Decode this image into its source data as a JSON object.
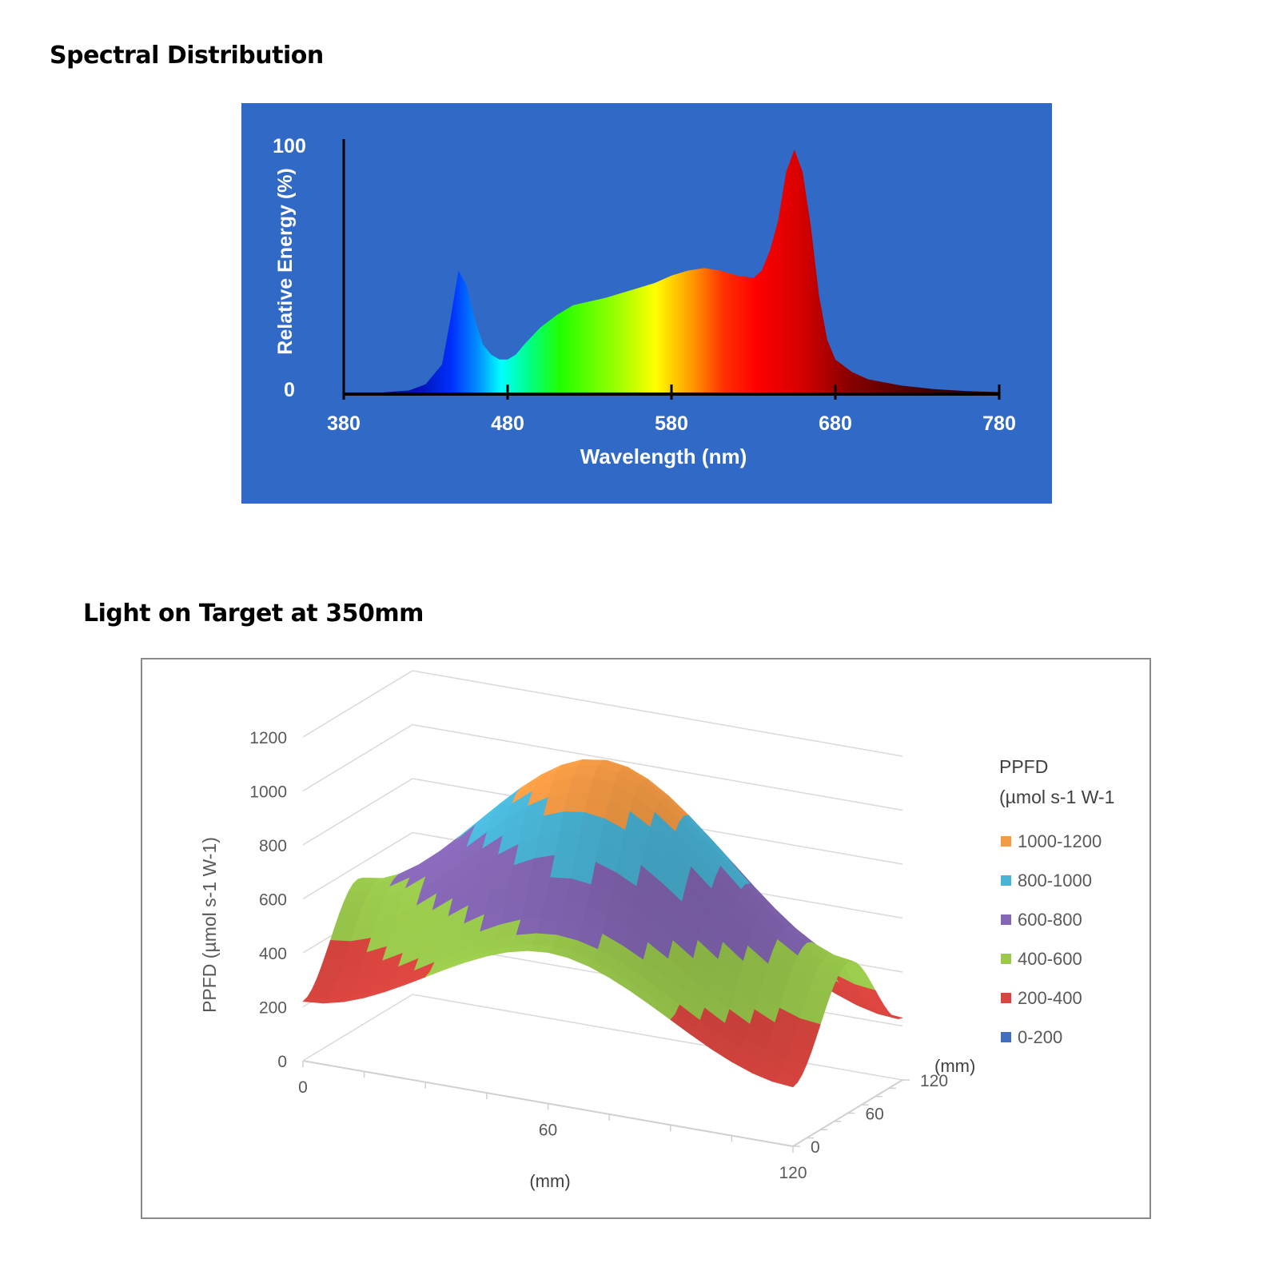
{
  "titles": {
    "spectral": "Spectral Distribution",
    "target": "Light on Target at 350mm"
  },
  "chart_data": [
    {
      "type": "area",
      "xlabel": "Wavelength (nm)",
      "ylabel": "Relative Energy (%)",
      "xlim": [
        380,
        780
      ],
      "ylim": [
        0,
        100
      ],
      "x_ticks": [
        380,
        480,
        580,
        680,
        780
      ],
      "y_ticks": [
        0,
        100
      ],
      "fill": "visible-spectrum color gradient",
      "background": "#3169c6",
      "grid": false,
      "x": [
        380,
        400,
        420,
        430,
        440,
        445,
        450,
        455,
        460,
        465,
        470,
        475,
        480,
        485,
        490,
        500,
        510,
        520,
        530,
        540,
        550,
        560,
        570,
        580,
        590,
        600,
        610,
        620,
        630,
        635,
        640,
        645,
        650,
        655,
        660,
        665,
        670,
        675,
        680,
        690,
        700,
        720,
        740,
        760,
        780
      ],
      "y": [
        0,
        0.5,
        1.5,
        4,
        12,
        30,
        50,
        44,
        30,
        20,
        16,
        14,
        14,
        16,
        20,
        27,
        32,
        36,
        37.5,
        39,
        41,
        43,
        45,
        48,
        50,
        51,
        50,
        48,
        47,
        50,
        58,
        70,
        90,
        99,
        90,
        68,
        40,
        22,
        14,
        9,
        6,
        3.5,
        2,
        1.2,
        0.8
      ]
    },
    {
      "type": "surface",
      "ylabel": "PPFD (µmol s-1 W-1)",
      "x_label": "(mm)",
      "depth_label": "(mm)",
      "x_ticks": [
        0,
        60,
        120
      ],
      "depth_ticks": [
        0,
        60,
        120
      ],
      "z_ticks": [
        0,
        200,
        400,
        600,
        800,
        1000,
        1200
      ],
      "zlim": [
        0,
        1200
      ],
      "legend_title": [
        "PPFD",
        "(µmol s-1 W-1"
      ],
      "legend_position": "right",
      "bands": [
        {
          "label": "1000-1200",
          "color": "#f59b45"
        },
        {
          "label": "800-1000",
          "color": "#49b4d6"
        },
        {
          "label": "600-800",
          "color": "#8466b4"
        },
        {
          "label": "400-600",
          "color": "#9ac94c"
        },
        {
          "label": "200-400",
          "color": "#d9453f"
        },
        {
          "label": "0-200",
          "color": "#3f6fbd"
        }
      ],
      "grid_x": [
        0,
        60,
        120
      ],
      "grid_y": [
        0,
        60,
        120
      ],
      "z": [
        [
          220,
          550,
          270
        ],
        [
          560,
          1150,
          560
        ],
        [
          220,
          560,
          230
        ]
      ]
    }
  ]
}
